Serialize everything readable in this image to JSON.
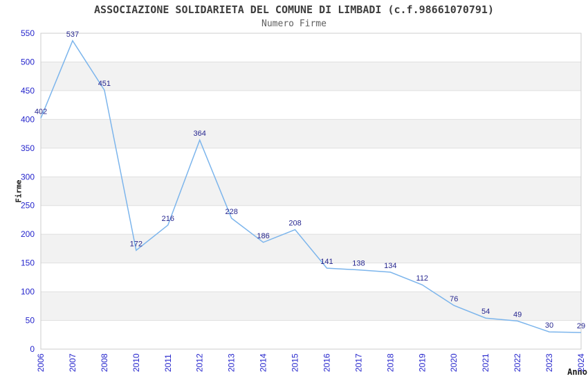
{
  "chart_data": {
    "type": "line",
    "title": "ASSOCIAZIONE SOLIDARIETA DEL COMUNE DI LIMBADI (c.f.98661070791)",
    "subtitle": "Numero Firme",
    "xlabel": "Anno",
    "ylabel": "Firme",
    "categories": [
      "2006",
      "2007",
      "2008",
      "2010",
      "2011",
      "2012",
      "2013",
      "2014",
      "2015",
      "2016",
      "2017",
      "2018",
      "2019",
      "2020",
      "2021",
      "2022",
      "2023",
      "2024"
    ],
    "values": [
      402,
      537,
      451,
      172,
      216,
      364,
      228,
      186,
      208,
      141,
      138,
      134,
      112,
      76,
      54,
      49,
      30,
      29
    ],
    "ylim": [
      0,
      550
    ],
    "ytick_step": 50,
    "grid": true,
    "legend_position": "none",
    "band_fill_between_alternate_ticks": true,
    "data_labels_shown": true,
    "colors": {
      "line": "#7cb5ec",
      "data_label": "#26268f",
      "tick_label": "#2424cc",
      "band": "#f2f2f2",
      "gridline": "#e0e0e0",
      "plot_border": "#cccccc"
    }
  }
}
